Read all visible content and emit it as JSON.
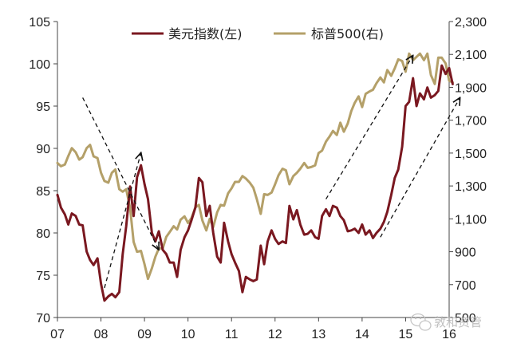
{
  "chart_data": {
    "type": "line",
    "title": "",
    "xlabel": "",
    "ylabel": "",
    "x_tick_labels": [
      "07",
      "08",
      "09",
      "10",
      "11",
      "12",
      "13",
      "14",
      "15",
      "16"
    ],
    "x_range": [
      2007.0,
      2016.0
    ],
    "left_axis": {
      "ylim": [
        70,
        105
      ],
      "ticks": [
        "70",
        "75",
        "80",
        "85",
        "90",
        "95",
        "100",
        "105"
      ]
    },
    "right_axis": {
      "ylim": [
        500,
        2300
      ],
      "ticks": [
        "500",
        "700",
        "900",
        "1,100",
        "1,300",
        "1,500",
        "1,700",
        "1,900",
        "2,100",
        "2,300"
      ]
    },
    "legend": {
      "placement": "top",
      "items": [
        "美元指数(左)",
        "标普500(右)"
      ]
    },
    "grid": false,
    "series": [
      {
        "name": "美元指数(左)",
        "axis": "left",
        "color": "#7a1820",
        "points": [
          [
            2007.0,
            84.5
          ],
          [
            2007.08,
            83.0
          ],
          [
            2007.17,
            82.2
          ],
          [
            2007.25,
            81.0
          ],
          [
            2007.33,
            82.3
          ],
          [
            2007.42,
            82.0
          ],
          [
            2007.5,
            81.0
          ],
          [
            2007.58,
            80.9
          ],
          [
            2007.67,
            77.8
          ],
          [
            2007.75,
            76.8
          ],
          [
            2007.83,
            76.2
          ],
          [
            2007.92,
            77.0
          ],
          [
            2008.0,
            74.0
          ],
          [
            2008.08,
            72.0
          ],
          [
            2008.17,
            72.5
          ],
          [
            2008.25,
            72.8
          ],
          [
            2008.33,
            72.4
          ],
          [
            2008.42,
            73.0
          ],
          [
            2008.5,
            77.5
          ],
          [
            2008.58,
            80.8
          ],
          [
            2008.67,
            85.5
          ],
          [
            2008.75,
            82.0
          ],
          [
            2008.83,
            86.6
          ],
          [
            2008.92,
            88.0
          ],
          [
            2009.0,
            85.8
          ],
          [
            2009.08,
            84.0
          ],
          [
            2009.17,
            80.0
          ],
          [
            2009.25,
            79.0
          ],
          [
            2009.33,
            80.2
          ],
          [
            2009.42,
            78.0
          ],
          [
            2009.5,
            77.5
          ],
          [
            2009.58,
            76.5
          ],
          [
            2009.67,
            76.5
          ],
          [
            2009.75,
            74.8
          ],
          [
            2009.83,
            78.0
          ],
          [
            2009.92,
            79.5
          ],
          [
            2010.0,
            80.3
          ],
          [
            2010.08,
            81.5
          ],
          [
            2010.17,
            83.0
          ],
          [
            2010.25,
            86.5
          ],
          [
            2010.33,
            86.0
          ],
          [
            2010.42,
            82.0
          ],
          [
            2010.5,
            83.2
          ],
          [
            2010.58,
            80.0
          ],
          [
            2010.67,
            77.2
          ],
          [
            2010.75,
            76.5
          ],
          [
            2010.83,
            81.2
          ],
          [
            2010.92,
            79.0
          ],
          [
            2011.0,
            77.5
          ],
          [
            2011.08,
            76.5
          ],
          [
            2011.17,
            75.5
          ],
          [
            2011.25,
            73.0
          ],
          [
            2011.33,
            74.8
          ],
          [
            2011.42,
            74.5
          ],
          [
            2011.5,
            74.3
          ],
          [
            2011.58,
            74.5
          ],
          [
            2011.67,
            78.5
          ],
          [
            2011.75,
            76.3
          ],
          [
            2011.83,
            79.0
          ],
          [
            2011.92,
            80.3
          ],
          [
            2012.0,
            79.3
          ],
          [
            2012.08,
            78.7
          ],
          [
            2012.17,
            79.0
          ],
          [
            2012.25,
            78.8
          ],
          [
            2012.33,
            83.2
          ],
          [
            2012.42,
            81.6
          ],
          [
            2012.5,
            82.7
          ],
          [
            2012.58,
            81.0
          ],
          [
            2012.67,
            79.8
          ],
          [
            2012.75,
            79.9
          ],
          [
            2012.83,
            80.3
          ],
          [
            2012.92,
            79.5
          ],
          [
            2013.0,
            79.3
          ],
          [
            2013.08,
            82.0
          ],
          [
            2013.17,
            82.8
          ],
          [
            2013.25,
            82.0
          ],
          [
            2013.33,
            83.2
          ],
          [
            2013.42,
            83.0
          ],
          [
            2013.5,
            82.0
          ],
          [
            2013.58,
            81.5
          ],
          [
            2013.67,
            80.2
          ],
          [
            2013.75,
            80.3
          ],
          [
            2013.83,
            80.5
          ],
          [
            2013.92,
            80.0
          ],
          [
            2014.0,
            81.0
          ],
          [
            2014.08,
            79.8
          ],
          [
            2014.17,
            80.3
          ],
          [
            2014.25,
            79.4
          ],
          [
            2014.33,
            80.0
          ],
          [
            2014.42,
            80.5
          ],
          [
            2014.5,
            81.3
          ],
          [
            2014.58,
            82.5
          ],
          [
            2014.67,
            84.5
          ],
          [
            2014.75,
            86.5
          ],
          [
            2014.83,
            87.5
          ],
          [
            2014.92,
            90.2
          ],
          [
            2015.0,
            95.0
          ],
          [
            2015.08,
            95.5
          ],
          [
            2015.17,
            98.3
          ],
          [
            2015.25,
            95.0
          ],
          [
            2015.33,
            96.5
          ],
          [
            2015.42,
            95.8
          ],
          [
            2015.5,
            97.2
          ],
          [
            2015.58,
            96.0
          ],
          [
            2015.67,
            96.3
          ],
          [
            2015.75,
            96.8
          ],
          [
            2015.83,
            99.8
          ],
          [
            2015.92,
            98.8
          ],
          [
            2016.0,
            99.5
          ],
          [
            2016.08,
            97.6
          ]
        ]
      },
      {
        "name": "标普500(右)",
        "axis": "right",
        "color": "#b4a069",
        "points": [
          [
            2007.0,
            1440
          ],
          [
            2007.08,
            1420
          ],
          [
            2007.17,
            1430
          ],
          [
            2007.25,
            1482
          ],
          [
            2007.33,
            1530
          ],
          [
            2007.42,
            1505
          ],
          [
            2007.5,
            1460
          ],
          [
            2007.58,
            1475
          ],
          [
            2007.67,
            1530
          ],
          [
            2007.75,
            1550
          ],
          [
            2007.83,
            1480
          ],
          [
            2007.92,
            1470
          ],
          [
            2008.0,
            1380
          ],
          [
            2008.08,
            1330
          ],
          [
            2008.17,
            1320
          ],
          [
            2008.25,
            1380
          ],
          [
            2008.33,
            1400
          ],
          [
            2008.42,
            1280
          ],
          [
            2008.5,
            1265
          ],
          [
            2008.58,
            1280
          ],
          [
            2008.67,
            1165
          ],
          [
            2008.75,
            960
          ],
          [
            2008.83,
            900
          ],
          [
            2008.92,
            905
          ],
          [
            2009.0,
            825
          ],
          [
            2009.08,
            735
          ],
          [
            2009.17,
            800
          ],
          [
            2009.25,
            870
          ],
          [
            2009.33,
            920
          ],
          [
            2009.42,
            920
          ],
          [
            2009.5,
            990
          ],
          [
            2009.58,
            1020
          ],
          [
            2009.67,
            1055
          ],
          [
            2009.75,
            1035
          ],
          [
            2009.83,
            1095
          ],
          [
            2009.92,
            1115
          ],
          [
            2010.0,
            1075
          ],
          [
            2010.08,
            1105
          ],
          [
            2010.17,
            1170
          ],
          [
            2010.25,
            1185
          ],
          [
            2010.33,
            1090
          ],
          [
            2010.42,
            1030
          ],
          [
            2010.5,
            1100
          ],
          [
            2010.58,
            1050
          ],
          [
            2010.67,
            1140
          ],
          [
            2010.75,
            1185
          ],
          [
            2010.83,
            1180
          ],
          [
            2010.92,
            1255
          ],
          [
            2011.0,
            1285
          ],
          [
            2011.08,
            1325
          ],
          [
            2011.17,
            1325
          ],
          [
            2011.25,
            1360
          ],
          [
            2011.33,
            1345
          ],
          [
            2011.42,
            1320
          ],
          [
            2011.5,
            1290
          ],
          [
            2011.58,
            1220
          ],
          [
            2011.67,
            1130
          ],
          [
            2011.75,
            1250
          ],
          [
            2011.83,
            1245
          ],
          [
            2011.92,
            1260
          ],
          [
            2012.0,
            1310
          ],
          [
            2012.08,
            1365
          ],
          [
            2012.17,
            1405
          ],
          [
            2012.25,
            1395
          ],
          [
            2012.33,
            1310
          ],
          [
            2012.42,
            1360
          ],
          [
            2012.5,
            1380
          ],
          [
            2012.58,
            1405
          ],
          [
            2012.67,
            1440
          ],
          [
            2012.75,
            1410
          ],
          [
            2012.83,
            1415
          ],
          [
            2012.92,
            1425
          ],
          [
            2013.0,
            1500
          ],
          [
            2013.08,
            1515
          ],
          [
            2013.17,
            1570
          ],
          [
            2013.25,
            1600
          ],
          [
            2013.33,
            1635
          ],
          [
            2013.42,
            1610
          ],
          [
            2013.5,
            1685
          ],
          [
            2013.58,
            1630
          ],
          [
            2013.67,
            1680
          ],
          [
            2013.75,
            1755
          ],
          [
            2013.83,
            1805
          ],
          [
            2013.92,
            1845
          ],
          [
            2014.0,
            1780
          ],
          [
            2014.08,
            1860
          ],
          [
            2014.17,
            1875
          ],
          [
            2014.25,
            1885
          ],
          [
            2014.33,
            1925
          ],
          [
            2014.42,
            1960
          ],
          [
            2014.5,
            1930
          ],
          [
            2014.58,
            2005
          ],
          [
            2014.67,
            1970
          ],
          [
            2014.75,
            2015
          ],
          [
            2014.83,
            2070
          ],
          [
            2014.92,
            2060
          ],
          [
            2015.0,
            1995
          ],
          [
            2015.08,
            2105
          ],
          [
            2015.17,
            2065
          ],
          [
            2015.25,
            2085
          ],
          [
            2015.33,
            2105
          ],
          [
            2015.42,
            2065
          ],
          [
            2015.5,
            2105
          ],
          [
            2015.58,
            1975
          ],
          [
            2015.67,
            1920
          ],
          [
            2015.75,
            2080
          ],
          [
            2015.83,
            2080
          ],
          [
            2015.92,
            2045
          ],
          [
            2016.0,
            1940
          ],
          [
            2016.08,
            1930
          ]
        ]
      }
    ],
    "annotations": [
      {
        "kind": "dashed-arrow",
        "axis": "left",
        "from": [
          2007.58,
          96.0
        ],
        "to": [
          2009.33,
          78.0
        ]
      },
      {
        "kind": "dashed-arrow",
        "axis": "left",
        "from": [
          2008.08,
          73.5
        ],
        "to": [
          2008.92,
          89.5
        ]
      },
      {
        "kind": "dashed-arrow",
        "axis": "left",
        "from": [
          2013.17,
          84.0
        ],
        "to": [
          2015.17,
          101.0
        ]
      },
      {
        "kind": "dashed-arrow",
        "axis": "left",
        "from": [
          2014.42,
          79.5
        ],
        "to": [
          2016.25,
          96.0
        ]
      }
    ]
  },
  "watermark": {
    "text": "敦和资管",
    "icon": "wechat-icon"
  }
}
